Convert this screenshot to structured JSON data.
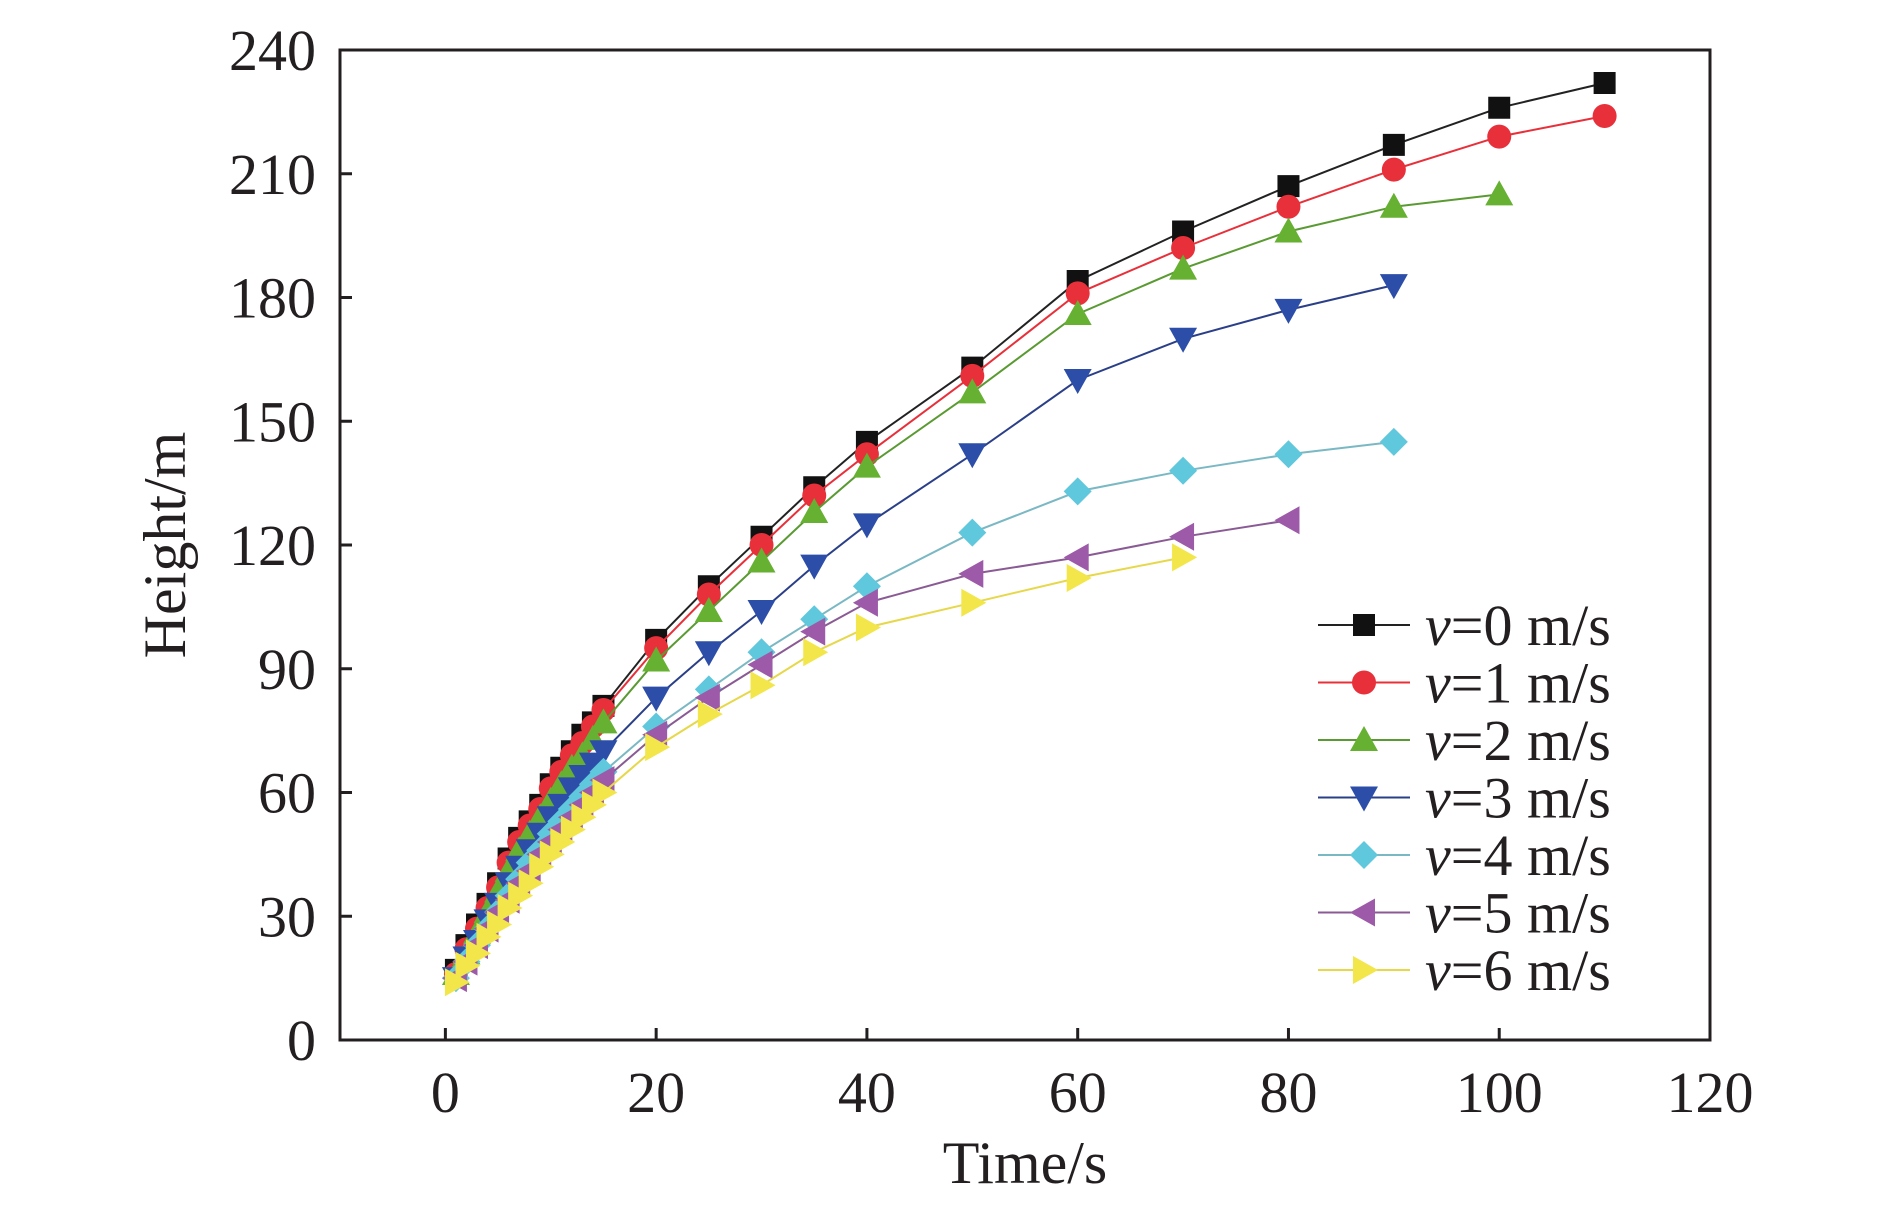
{
  "chart_data": {
    "type": "line",
    "title": "",
    "xlabel": "Time/s",
    "ylabel": "Height/m",
    "xlim": [
      -10,
      120
    ],
    "ylim": [
      0,
      240
    ],
    "xticks": [
      0,
      20,
      40,
      60,
      80,
      100,
      120
    ],
    "yticks": [
      0,
      30,
      60,
      90,
      120,
      150,
      180,
      210,
      240
    ],
    "xtick_labels": [
      "0",
      "20",
      "40",
      "60",
      "80",
      "100",
      "120"
    ],
    "ytick_labels": [
      "0",
      "30",
      "60",
      "90",
      "120",
      "150",
      "180",
      "210",
      "240"
    ],
    "grid": false,
    "legend_position": "lower-right",
    "series": [
      {
        "name": "v=0 m/s",
        "legend_var": "v",
        "legend_rest": "=0 m/s",
        "marker": "square",
        "marker_color": "#111111",
        "line_color": "#222222",
        "x": [
          1,
          2,
          3,
          4,
          5,
          6,
          7,
          8,
          9,
          10,
          11,
          12,
          13,
          14,
          15,
          20,
          25,
          30,
          35,
          40,
          50,
          60,
          70,
          80,
          90,
          100,
          110
        ],
        "y": [
          17,
          23,
          28,
          33,
          38,
          44,
          49,
          53,
          57,
          62,
          66,
          70,
          74,
          77,
          81,
          97,
          110,
          122,
          134,
          145,
          163,
          184,
          196,
          207,
          217,
          226,
          232
        ]
      },
      {
        "name": "v=1 m/s",
        "legend_var": "v",
        "legend_rest": "=1 m/s",
        "marker": "circle",
        "marker_color": "#e8303a",
        "line_color": "#e8303a",
        "x": [
          1,
          2,
          3,
          4,
          5,
          6,
          7,
          8,
          9,
          10,
          11,
          12,
          13,
          14,
          15,
          20,
          25,
          30,
          35,
          40,
          50,
          60,
          70,
          80,
          90,
          100,
          110
        ],
        "y": [
          16,
          22,
          27,
          32,
          37,
          43,
          48,
          52,
          56,
          61,
          65,
          69,
          72,
          76,
          80,
          95,
          108,
          120,
          132,
          142,
          161,
          181,
          192,
          202,
          211,
          219,
          224
        ]
      },
      {
        "name": "v=2 m/s",
        "legend_var": "v",
        "legend_rest": "=2 m/s",
        "marker": "triangle-up",
        "marker_color": "#66b032",
        "line_color": "#5a9a32",
        "x": [
          1,
          2,
          3,
          4,
          5,
          6,
          7,
          8,
          9,
          10,
          11,
          12,
          13,
          14,
          15,
          20,
          25,
          30,
          35,
          40,
          50,
          60,
          70,
          80,
          90,
          100
        ],
        "y": [
          16,
          21,
          26,
          31,
          36,
          41,
          46,
          50,
          54,
          58,
          62,
          66,
          69,
          73,
          77,
          92,
          104,
          116,
          128,
          139,
          157,
          176,
          187,
          196,
          202,
          205
        ]
      },
      {
        "name": "v=3 m/s",
        "legend_var": "v",
        "legend_rest": "=3 m/s",
        "marker": "triangle-down",
        "marker_color": "#2c4ea8",
        "line_color": "#2a3f88",
        "x": [
          1,
          2,
          3,
          4,
          5,
          6,
          7,
          8,
          9,
          10,
          11,
          12,
          13,
          14,
          15,
          20,
          25,
          30,
          35,
          40,
          50,
          60,
          70,
          80,
          90
        ],
        "y": [
          15,
          20,
          24,
          29,
          33,
          38,
          42,
          46,
          50,
          54,
          57,
          61,
          64,
          67,
          70,
          83,
          94,
          104,
          115,
          125,
          142,
          160,
          170,
          177,
          183
        ]
      },
      {
        "name": "v=4 m/s",
        "legend_var": "v",
        "legend_rest": "=4 m/s",
        "marker": "diamond",
        "marker_color": "#5fc8dc",
        "line_color": "#7ab8c4",
        "x": [
          1,
          2,
          3,
          4,
          5,
          6,
          7,
          8,
          9,
          10,
          11,
          12,
          13,
          14,
          15,
          20,
          25,
          30,
          35,
          40,
          50,
          60,
          70,
          80,
          90
        ],
        "y": [
          15,
          19,
          23,
          27,
          31,
          35,
          39,
          43,
          46,
          50,
          53,
          56,
          59,
          62,
          65,
          76,
          85,
          94,
          102,
          110,
          123,
          133,
          138,
          142,
          145
        ]
      },
      {
        "name": "v=5 m/s",
        "legend_var": "v",
        "legend_rest": "=5 m/s",
        "marker": "triangle-left",
        "marker_color": "#9c5aa8",
        "line_color": "#8a5a94",
        "x": [
          1,
          2,
          3,
          4,
          5,
          6,
          7,
          8,
          9,
          10,
          11,
          12,
          13,
          14,
          15,
          20,
          25,
          30,
          35,
          40,
          50,
          60,
          70,
          80
        ],
        "y": [
          15,
          19,
          23,
          27,
          31,
          34,
          38,
          41,
          45,
          48,
          51,
          54,
          57,
          60,
          63,
          74,
          83,
          91,
          99,
          106,
          113,
          117,
          122,
          126
        ]
      },
      {
        "name": "v=6 m/s",
        "legend_var": "v",
        "legend_rest": "=6 m/s",
        "marker": "triangle-right",
        "marker_color": "#f2e64a",
        "line_color": "#e6d84a",
        "x": [
          1,
          2,
          3,
          4,
          5,
          6,
          7,
          8,
          9,
          10,
          11,
          12,
          13,
          14,
          15,
          20,
          25,
          30,
          35,
          40,
          50,
          60,
          70
        ],
        "y": [
          14,
          18,
          21,
          25,
          28,
          32,
          35,
          38,
          42,
          45,
          48,
          51,
          54,
          57,
          60,
          71,
          79,
          86,
          94,
          100,
          106,
          112,
          117
        ]
      }
    ]
  }
}
